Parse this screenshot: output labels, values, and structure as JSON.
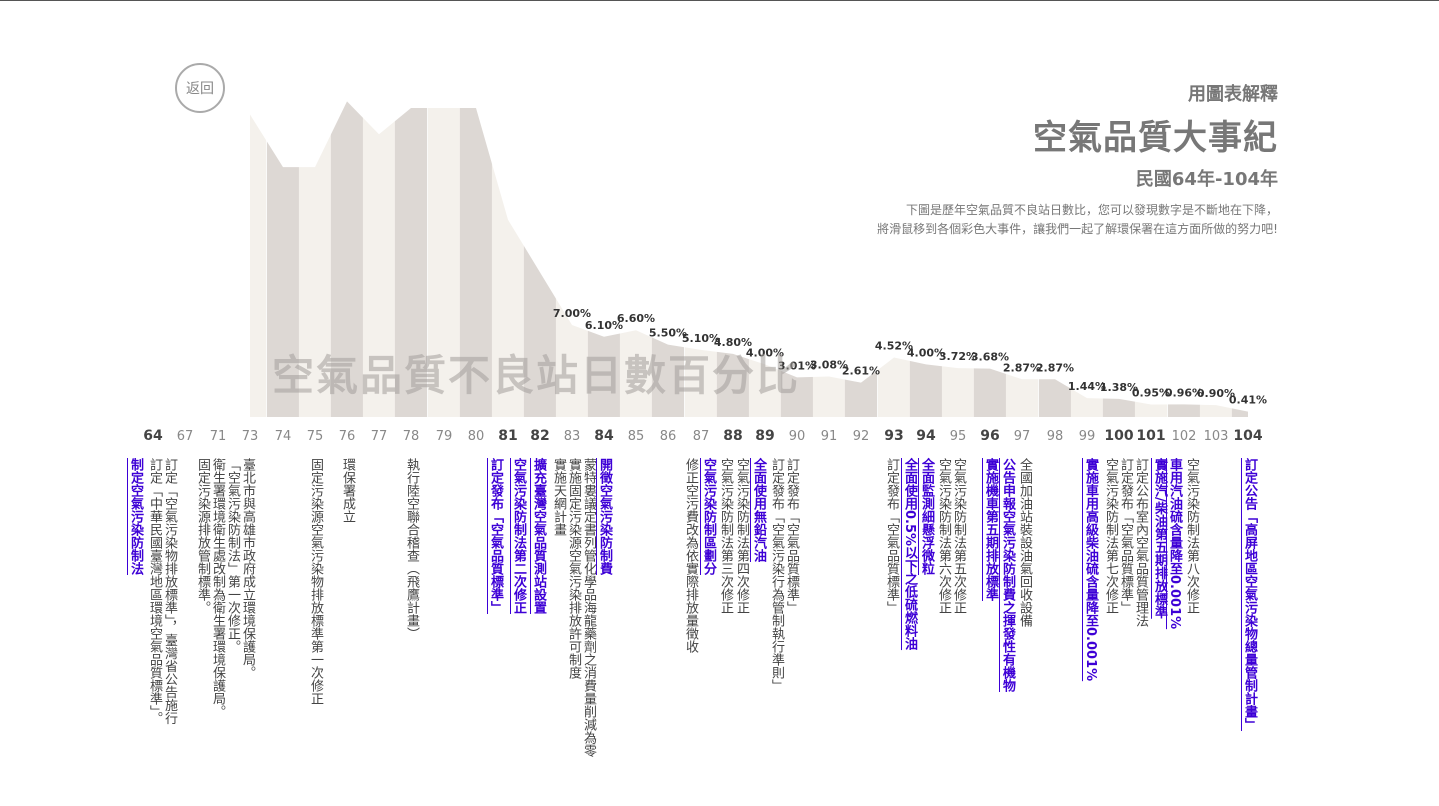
{
  "header": {
    "subtitle": "用圖表解釋",
    "title": "空氣品質大事紀",
    "period": "民國64年-104年",
    "desc_line1": "下圖是歷年空氣品質不良站日數比，您可以發現數字是不斷地在下降，",
    "desc_line2": "將滑鼠移到各個彩色大事件，讓我們一起了解環保署在這方面所做的努力吧!"
  },
  "back_button": "返回",
  "chart_data": {
    "type": "area",
    "title": "空氣品質不良站日數百分比",
    "x": [
      "64",
      "67",
      "71",
      "73",
      "74",
      "75",
      "76",
      "77",
      "78",
      "79",
      "80",
      "81",
      "82",
      "83",
      "84",
      "85",
      "86",
      "87",
      "88",
      "89",
      "90",
      "91",
      "92",
      "93",
      "94",
      "95",
      "96",
      "97",
      "98",
      "99",
      "100",
      "101",
      "102",
      "103",
      "104"
    ],
    "bold_x": [
      "64",
      "81",
      "82",
      "84",
      "88",
      "89",
      "93",
      "94",
      "96",
      "100",
      "101",
      "104"
    ],
    "values": [
      null,
      null,
      null,
      23.0,
      19.0,
      19.0,
      24.0,
      21.5,
      23.5,
      23.5,
      23.5,
      15.0,
      11.0,
      7.0,
      6.1,
      6.6,
      5.5,
      5.1,
      4.8,
      4.0,
      3.01,
      3.08,
      2.61,
      4.52,
      4.0,
      3.72,
      3.68,
      2.87,
      2.87,
      1.44,
      1.38,
      0.95,
      0.96,
      0.9,
      0.41
    ],
    "labels": [
      "",
      "",
      "",
      "",
      "",
      "",
      "",
      "",
      "",
      "",
      "",
      "",
      "",
      "7.00%",
      "6.10%",
      "6.60%",
      "5.50%",
      "5.10%",
      "4.80%",
      "4.00%",
      "3.01%",
      "3.08%",
      "2.61%",
      "4.52%",
      "4.00%",
      "3.72%",
      "3.68%",
      "2.87%",
      "2.87%",
      "1.44%",
      "1.38%",
      "0.95%",
      "0.96%",
      "0.90%",
      "0.41%"
    ],
    "colors": {
      "light": "#f4f1ec",
      "dark": "#ddd8d4",
      "highlight": "#3d00d6"
    }
  },
  "events": [
    {
      "year": "64",
      "hl": true,
      "lines": [
        "制定空氣污染防制法"
      ]
    },
    {
      "year": "67",
      "hl": false,
      "lines": [
        "訂定「空氣污染物排放標準」，臺灣省公告施行",
        "訂定「中華民國臺灣地區環境空氣品質標準」。"
      ]
    },
    {
      "year": "71",
      "hl": false,
      "lines": [
        "臺北市與高雄市政府成立環境保護局。",
        "「空氣污染防制法」第一次修正。",
        "衛生署環境衛生處改制為衛生署環境保護局。",
        "固定污染源排放管制標準。"
      ]
    },
    {
      "year": "75",
      "hl": false,
      "lines": [
        "固定污染源空氣污染物排放標準第一次修正"
      ]
    },
    {
      "year": "76",
      "hl": false,
      "lines": [
        "環保署成立"
      ]
    },
    {
      "year": "78",
      "hl": false,
      "lines": [
        "執行陸空聯合稽查（飛鷹計畫）"
      ]
    },
    {
      "year": "81",
      "hl": true,
      "lines": [
        "訂定發布「空氣品質標準」"
      ]
    },
    {
      "year": "82a",
      "hl": true,
      "lines": [
        "空氣污染防制法第二次修正"
      ]
    },
    {
      "year": "82b",
      "hl": true,
      "lines": [
        "擴充臺灣空氣品質測站設置"
      ]
    },
    {
      "year": "83",
      "hl": false,
      "lines": [
        "蒙特婁議定書列管化學品海龍藥劑之消費量削減為零",
        "實施固定污染源空氣污染排放許可制度",
        "實施天網計畫"
      ]
    },
    {
      "year": "84",
      "hl": true,
      "lines": [
        "開徵空氣污染防制費"
      ]
    },
    {
      "year": "87",
      "hl": false,
      "lines": [
        "修正空污費改為依實際排放量徵收"
      ]
    },
    {
      "year": "88a",
      "hl": true,
      "lines": [
        "空氣污染防制區劃分"
      ]
    },
    {
      "year": "88b",
      "hl": false,
      "lines": [
        "空氣污染防制法第三次修正"
      ]
    },
    {
      "year": "88c",
      "hl": false,
      "lines": [
        "空氣污染防制法第四次修正"
      ]
    },
    {
      "year": "89",
      "hl": true,
      "lines": [
        "全面使用無鉛汽油"
      ]
    },
    {
      "year": "90",
      "hl": false,
      "lines": [
        "訂定發布「空氣品質標準」",
        "訂定發布「空氣污染行為管制執行準則」"
      ]
    },
    {
      "year": "93a",
      "hl": false,
      "lines": [
        "訂定發布「空氣品質標準」"
      ]
    },
    {
      "year": "93b",
      "hl": true,
      "lines": [
        "全面使用0.5%以下之低硫燃料油"
      ]
    },
    {
      "year": "94",
      "hl": true,
      "lines": [
        "全面監測細懸浮微粒"
      ]
    },
    {
      "year": "95",
      "hl": false,
      "lines": [
        "空氣污染防制法第五次修正",
        "空氣污染防制法第六次修正"
      ]
    },
    {
      "year": "96",
      "hl": true,
      "lines": [
        "實施機車第五期排放標準"
      ]
    },
    {
      "year": "97",
      "hl": true,
      "lines": [
        "公告申報空氣污染防制費之揮發性有機物"
      ]
    },
    {
      "year": "98",
      "hl": false,
      "lines": [
        "全國加油站裝設油氣回收設備"
      ]
    },
    {
      "year": "99",
      "hl": true,
      "lines": [
        "實施車用高級柴油硫含量降至0.001%"
      ]
    },
    {
      "year": "100",
      "hl": false,
      "lines": [
        "訂定公布室內空氣品質管理法",
        "訂定發布「空氣品質標準」",
        "空氣污染防制法第七次修正"
      ]
    },
    {
      "year": "101",
      "hl": true,
      "lines": [
        "車用汽油硫含量降至0.001%",
        "實施汽/柴油第五期排放標準"
      ]
    },
    {
      "year": "102",
      "hl": false,
      "lines": [
        "空氣污染防制法第八次修正"
      ]
    },
    {
      "year": "104",
      "hl": true,
      "lines": [
        "訂定公告「高屏地區空氣污染物總量管制計畫」"
      ]
    }
  ]
}
